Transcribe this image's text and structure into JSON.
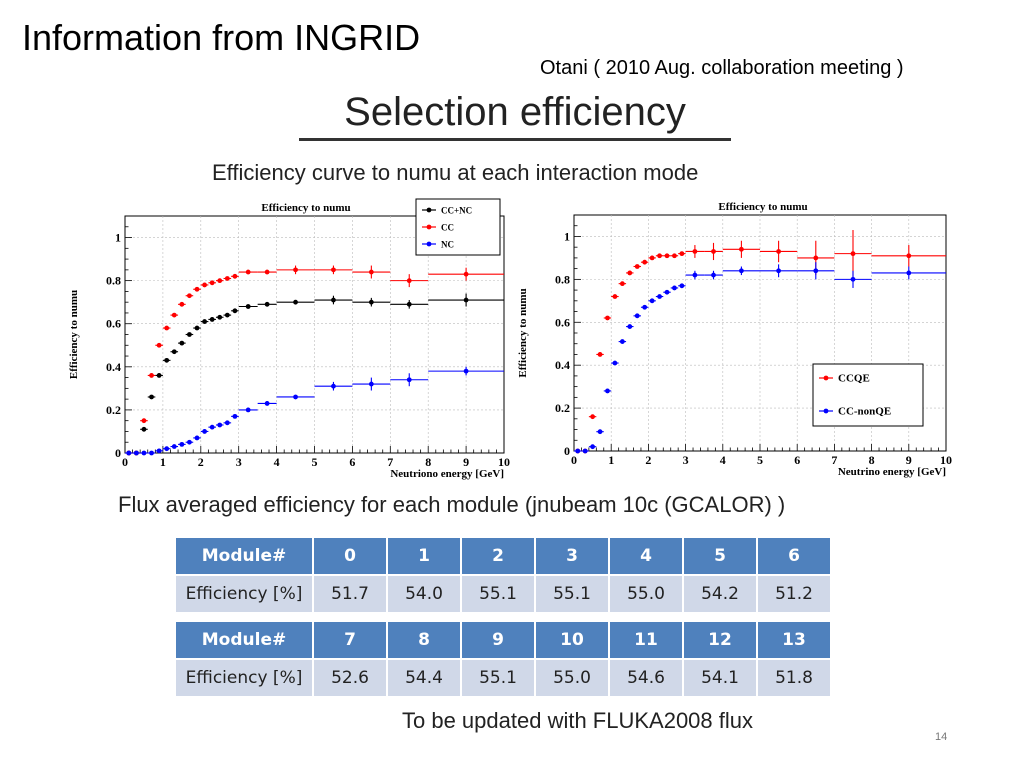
{
  "slide": {
    "title": "Information from INGRID",
    "attribution": "Otani ( 2010 Aug. collaboration meeting )",
    "heading": "Selection efficiency",
    "subheading": "Efficiency curve to numu at each interaction mode",
    "flux_caption": "Flux averaged efficiency for each module (jnubeam 10c (GCALOR) )",
    "footer_note": "To be updated with FLUKA2008 flux",
    "page_number": "14"
  },
  "chart_data": [
    {
      "type": "scatter",
      "title": "Efficiency to numu",
      "xlabel": "Neutriono energy [GeV]",
      "ylabel": "Efficiency to numu",
      "xlim": [
        0,
        10
      ],
      "ylim": [
        0,
        1.1
      ],
      "xticks": [
        0,
        1,
        2,
        3,
        4,
        5,
        6,
        7,
        8,
        9,
        10
      ],
      "yticks": [
        0,
        0.2,
        0.4,
        0.6,
        0.8,
        1
      ],
      "grid": true,
      "legend_position": "top-right",
      "series": [
        {
          "name": "CC+NC",
          "color": "#000000",
          "x": [
            0.1,
            0.3,
            0.5,
            0.7,
            0.9,
            1.1,
            1.3,
            1.5,
            1.7,
            1.9,
            2.1,
            2.3,
            2.5,
            2.7,
            2.9,
            3.25,
            3.75,
            4.5,
            5.5,
            6.5,
            7.5,
            9.0
          ],
          "y": [
            0.0,
            0.0,
            0.11,
            0.26,
            0.36,
            0.43,
            0.47,
            0.51,
            0.55,
            0.58,
            0.61,
            0.62,
            0.63,
            0.64,
            0.66,
            0.68,
            0.69,
            0.7,
            0.71,
            0.7,
            0.69,
            0.71
          ],
          "xerr": [
            0.1,
            0.1,
            0.1,
            0.1,
            0.1,
            0.1,
            0.1,
            0.1,
            0.1,
            0.1,
            0.1,
            0.1,
            0.1,
            0.1,
            0.1,
            0.25,
            0.25,
            0.5,
            0.5,
            0.5,
            0.5,
            1.0
          ],
          "yerr": [
            0,
            0,
            0,
            0,
            0,
            0,
            0,
            0,
            0,
            0,
            0,
            0,
            0,
            0,
            0,
            0.01,
            0.01,
            0.01,
            0.02,
            0.02,
            0.02,
            0.03
          ]
        },
        {
          "name": "CC",
          "color": "#ff0000",
          "x": [
            0.1,
            0.3,
            0.5,
            0.7,
            0.9,
            1.1,
            1.3,
            1.5,
            1.7,
            1.9,
            2.1,
            2.3,
            2.5,
            2.7,
            2.9,
            3.25,
            3.75,
            4.5,
            5.5,
            6.5,
            7.5,
            9.0
          ],
          "y": [
            0.0,
            0.0,
            0.15,
            0.36,
            0.5,
            0.58,
            0.64,
            0.69,
            0.73,
            0.76,
            0.78,
            0.79,
            0.8,
            0.81,
            0.82,
            0.84,
            0.84,
            0.85,
            0.85,
            0.84,
            0.8,
            0.83
          ],
          "xerr": [
            0.1,
            0.1,
            0.1,
            0.1,
            0.1,
            0.1,
            0.1,
            0.1,
            0.1,
            0.1,
            0.1,
            0.1,
            0.1,
            0.1,
            0.1,
            0.25,
            0.25,
            0.5,
            0.5,
            0.5,
            0.5,
            1.0
          ],
          "yerr": [
            0,
            0,
            0,
            0,
            0,
            0,
            0,
            0,
            0,
            0,
            0,
            0,
            0,
            0,
            0,
            0.01,
            0.01,
            0.02,
            0.02,
            0.03,
            0.03,
            0.03
          ]
        },
        {
          "name": "NC",
          "color": "#0000ff",
          "x": [
            0.1,
            0.3,
            0.5,
            0.7,
            0.9,
            1.1,
            1.3,
            1.5,
            1.7,
            1.9,
            2.1,
            2.3,
            2.5,
            2.7,
            2.9,
            3.25,
            3.75,
            4.5,
            5.5,
            6.5,
            7.5,
            9.0
          ],
          "y": [
            0.0,
            0.0,
            0.0,
            0.0,
            0.01,
            0.02,
            0.03,
            0.04,
            0.05,
            0.07,
            0.1,
            0.12,
            0.13,
            0.14,
            0.17,
            0.2,
            0.23,
            0.26,
            0.31,
            0.32,
            0.34,
            0.38
          ],
          "xerr": [
            0.1,
            0.1,
            0.1,
            0.1,
            0.1,
            0.1,
            0.1,
            0.1,
            0.1,
            0.1,
            0.1,
            0.1,
            0.1,
            0.1,
            0.1,
            0.25,
            0.25,
            0.5,
            0.5,
            0.5,
            0.5,
            1.0
          ],
          "yerr": [
            0,
            0,
            0,
            0,
            0,
            0,
            0,
            0,
            0,
            0,
            0,
            0,
            0,
            0,
            0,
            0.01,
            0.01,
            0.01,
            0.02,
            0.03,
            0.03,
            0.02
          ]
        }
      ]
    },
    {
      "type": "scatter",
      "title": "Efficiency to numu",
      "xlabel": "Neutrino energy [GeV]",
      "ylabel": "Efficiency to numu",
      "xlim": [
        0,
        10
      ],
      "ylim": [
        0,
        1.1
      ],
      "xticks": [
        0,
        1,
        2,
        3,
        4,
        5,
        6,
        7,
        8,
        9,
        10
      ],
      "yticks": [
        0,
        0.2,
        0.4,
        0.6,
        0.8,
        1
      ],
      "grid": true,
      "legend_position": "bottom-right",
      "series": [
        {
          "name": "CCQE",
          "color": "#ff0000",
          "x": [
            0.1,
            0.3,
            0.5,
            0.7,
            0.9,
            1.1,
            1.3,
            1.5,
            1.7,
            1.9,
            2.1,
            2.3,
            2.5,
            2.7,
            2.9,
            3.25,
            3.75,
            4.5,
            5.5,
            6.5,
            7.5,
            9.0
          ],
          "y": [
            0.0,
            0.0,
            0.16,
            0.45,
            0.62,
            0.72,
            0.78,
            0.83,
            0.86,
            0.88,
            0.9,
            0.91,
            0.91,
            0.91,
            0.92,
            0.93,
            0.93,
            0.94,
            0.93,
            0.9,
            0.92,
            0.91
          ],
          "xerr": [
            0.1,
            0.1,
            0.1,
            0.1,
            0.1,
            0.1,
            0.1,
            0.1,
            0.1,
            0.1,
            0.1,
            0.1,
            0.1,
            0.1,
            0.1,
            0.25,
            0.25,
            0.5,
            0.5,
            0.5,
            0.5,
            1.0
          ],
          "yerr": [
            0,
            0,
            0,
            0,
            0,
            0,
            0,
            0,
            0,
            0,
            0,
            0,
            0,
            0,
            0,
            0.03,
            0.04,
            0.04,
            0.05,
            0.08,
            0.11,
            0.05
          ]
        },
        {
          "name": "CC-nonQE",
          "color": "#0000ff",
          "x": [
            0.1,
            0.3,
            0.5,
            0.7,
            0.9,
            1.1,
            1.3,
            1.5,
            1.7,
            1.9,
            2.1,
            2.3,
            2.5,
            2.7,
            2.9,
            3.25,
            3.75,
            4.5,
            5.5,
            6.5,
            7.5,
            9.0
          ],
          "y": [
            0.0,
            0.0,
            0.02,
            0.09,
            0.28,
            0.41,
            0.51,
            0.58,
            0.63,
            0.67,
            0.7,
            0.72,
            0.74,
            0.76,
            0.77,
            0.82,
            0.82,
            0.84,
            0.84,
            0.84,
            0.8,
            0.83
          ],
          "xerr": [
            0.1,
            0.1,
            0.1,
            0.1,
            0.1,
            0.1,
            0.1,
            0.1,
            0.1,
            0.1,
            0.1,
            0.1,
            0.1,
            0.1,
            0.1,
            0.25,
            0.25,
            0.5,
            0.5,
            0.5,
            0.5,
            1.0
          ],
          "yerr": [
            0,
            0,
            0,
            0,
            0,
            0,
            0,
            0,
            0,
            0,
            0,
            0,
            0,
            0,
            0,
            0.02,
            0.02,
            0.02,
            0.03,
            0.04,
            0.04,
            0.03
          ]
        }
      ]
    }
  ],
  "tables": [
    {
      "header_label": "Module#",
      "value_label": "Efficiency [%]",
      "modules": [
        "0",
        "1",
        "2",
        "3",
        "4",
        "5",
        "6"
      ],
      "efficiencies": [
        "51.7",
        "54.0",
        "55.1",
        "55.1",
        "55.0",
        "54.2",
        "51.2"
      ]
    },
    {
      "header_label": "Module#",
      "value_label": "Efficiency [%]",
      "modules": [
        "7",
        "8",
        "9",
        "10",
        "11",
        "12",
        "13"
      ],
      "efficiencies": [
        "52.6",
        "54.4",
        "55.1",
        "55.0",
        "54.6",
        "54.1",
        "51.8"
      ]
    }
  ]
}
